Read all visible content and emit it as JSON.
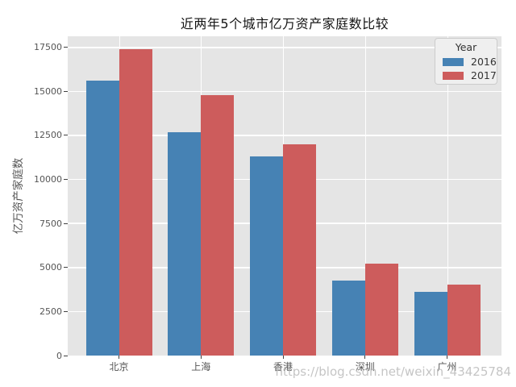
{
  "watermark": "https://blog.csdn.net/weixin_43425784",
  "chart_data": {
    "type": "bar",
    "title": "近两年5个城市亿万资产家庭数比较",
    "xlabel": "",
    "ylabel": "亿万资产家庭数",
    "categories": [
      "北京",
      "上海",
      "香港",
      "深圳",
      "广州"
    ],
    "series": [
      {
        "name": "2016",
        "color": "#4682b4",
        "values": [
          15600,
          12700,
          11300,
          4250,
          3630
        ]
      },
      {
        "name": "2017",
        "color": "#cd5c5c",
        "values": [
          17400,
          14800,
          12000,
          5200,
          4020
        ]
      }
    ],
    "yticks": [
      0,
      2500,
      5000,
      7500,
      10000,
      12500,
      15000,
      17500
    ],
    "ylim": [
      0,
      18130
    ],
    "legend_title": "Year",
    "legend_position": "upper right",
    "grid": true,
    "plot_bg_color": "#e5e5e5",
    "grid_color": "#ffffff",
    "tick_label_color": "#555555"
  }
}
